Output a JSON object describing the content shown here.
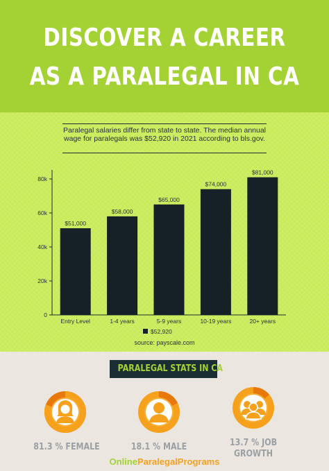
{
  "header": {
    "title_line1": "DISCOVER A CAREER",
    "title_line2": "AS A PARALEGAL IN CA"
  },
  "note": "Paralegal salaries differ from state to state. The median annual wage for paralegals was $52,920 in 2021 according to bls.gov.",
  "chart_data": {
    "type": "bar",
    "categories": [
      "Entry Level",
      "1-4 years",
      "5-9 years",
      "10-19 years",
      "20+ years"
    ],
    "values": [
      51000,
      58000,
      65000,
      74000,
      81000
    ],
    "data_labels": [
      "$51,000",
      "$58,000",
      "$65,000",
      "$74,000",
      "$81,000"
    ],
    "y_ticks": [
      0,
      20000,
      40000,
      60000,
      80000
    ],
    "y_tick_labels": [
      "0",
      "20k",
      "40k",
      "60k",
      "80k"
    ],
    "ylim": [
      0,
      85000
    ],
    "legend": "$52,920",
    "legend_position": "bottom-center",
    "source": "source: payscale.com",
    "grid": false,
    "colors": {
      "bar": "#152126",
      "axis": "#1a2b2e"
    }
  },
  "stats": {
    "title": "PARALEGAL STATS IN CA",
    "items": [
      {
        "label": "81.3 % FEMALE",
        "icon": "female-user-icon",
        "value": 0.813
      },
      {
        "label": "18.1 % MALE",
        "icon": "male-user-icon",
        "value": 0.181
      },
      {
        "label": "13.7 % JOB GROWTH",
        "icon": "group-icon",
        "value": 0.137
      }
    ]
  },
  "brand": {
    "part1": "Online",
    "part2": "ParalegalPrograms"
  },
  "colors": {
    "header_green": "#a4d234",
    "chart_bg": "#c9eb5a",
    "dark": "#1a2e33",
    "orange": "#f5a11c",
    "orange_dark": "#e8780b",
    "stats_bg": "#ece6e0"
  }
}
